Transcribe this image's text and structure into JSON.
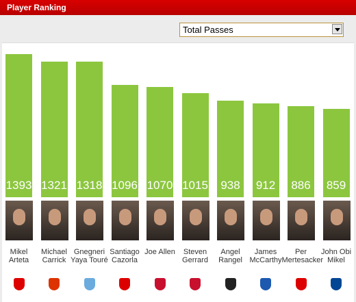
{
  "header": {
    "title": "Player Ranking"
  },
  "filter": {
    "selected": "Total Passes"
  },
  "chart_data": {
    "type": "bar",
    "categories": [
      "Mikel Arteta",
      "Michael Carrick",
      "Gnegneri Yaya Touré",
      "Santiago Cazorla",
      "Joe Allen",
      "Steven Gerrard",
      "Angel Rangel",
      "James McCarthy",
      "Per Mertesacker",
      "John Obi Mikel"
    ],
    "values": [
      1393,
      1321,
      1318,
      1096,
      1070,
      1015,
      938,
      912,
      886,
      859
    ],
    "color": "#8cc63f"
  }
}
